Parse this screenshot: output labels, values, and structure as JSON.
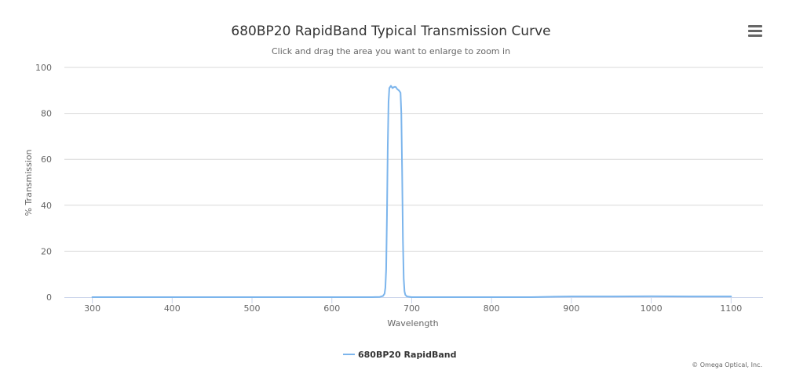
{
  "chart_data": {
    "type": "line",
    "title": "680BP20 RapidBand Typical Transmission Curve",
    "subtitle": "Click and drag the area you want to enlarge to zoom in",
    "xlabel": "Wavelength",
    "ylabel": "% Transmission",
    "xlim": [
      265,
      1140
    ],
    "ylim": [
      0,
      100
    ],
    "x_ticks": [
      300,
      400,
      500,
      600,
      700,
      800,
      900,
      1000,
      1100
    ],
    "y_ticks": [
      0,
      20,
      40,
      60,
      80,
      100
    ],
    "grid": "horizontal",
    "legend_position": "bottom-center",
    "series": [
      {
        "name": "680BP20 RapidBand",
        "color": "#7cb5ec",
        "x": [
          300,
          400,
          500,
          600,
          650,
          660,
          664,
          666,
          667,
          668,
          669,
          670,
          671,
          672,
          674,
          676,
          678,
          680,
          682,
          684,
          686,
          687,
          688,
          689,
          690,
          691,
          692,
          694,
          698,
          700,
          750,
          800,
          850,
          880,
          900,
          950,
          1000,
          1050,
          1100
        ],
        "y": [
          0,
          0,
          0,
          0,
          0,
          0.1,
          0.5,
          1.5,
          4,
          12,
          35,
          65,
          85,
          91,
          92,
          91,
          91.5,
          91.5,
          90.5,
          90,
          89,
          80,
          55,
          25,
          8,
          2.5,
          1,
          0.3,
          0.1,
          0,
          0,
          0,
          0,
          0.2,
          0.3,
          0.3,
          0.4,
          0.3,
          0.3
        ]
      }
    ]
  },
  "credits": "© Omega Optical, Inc.",
  "icons": {
    "menu": "hamburger-menu-icon"
  }
}
